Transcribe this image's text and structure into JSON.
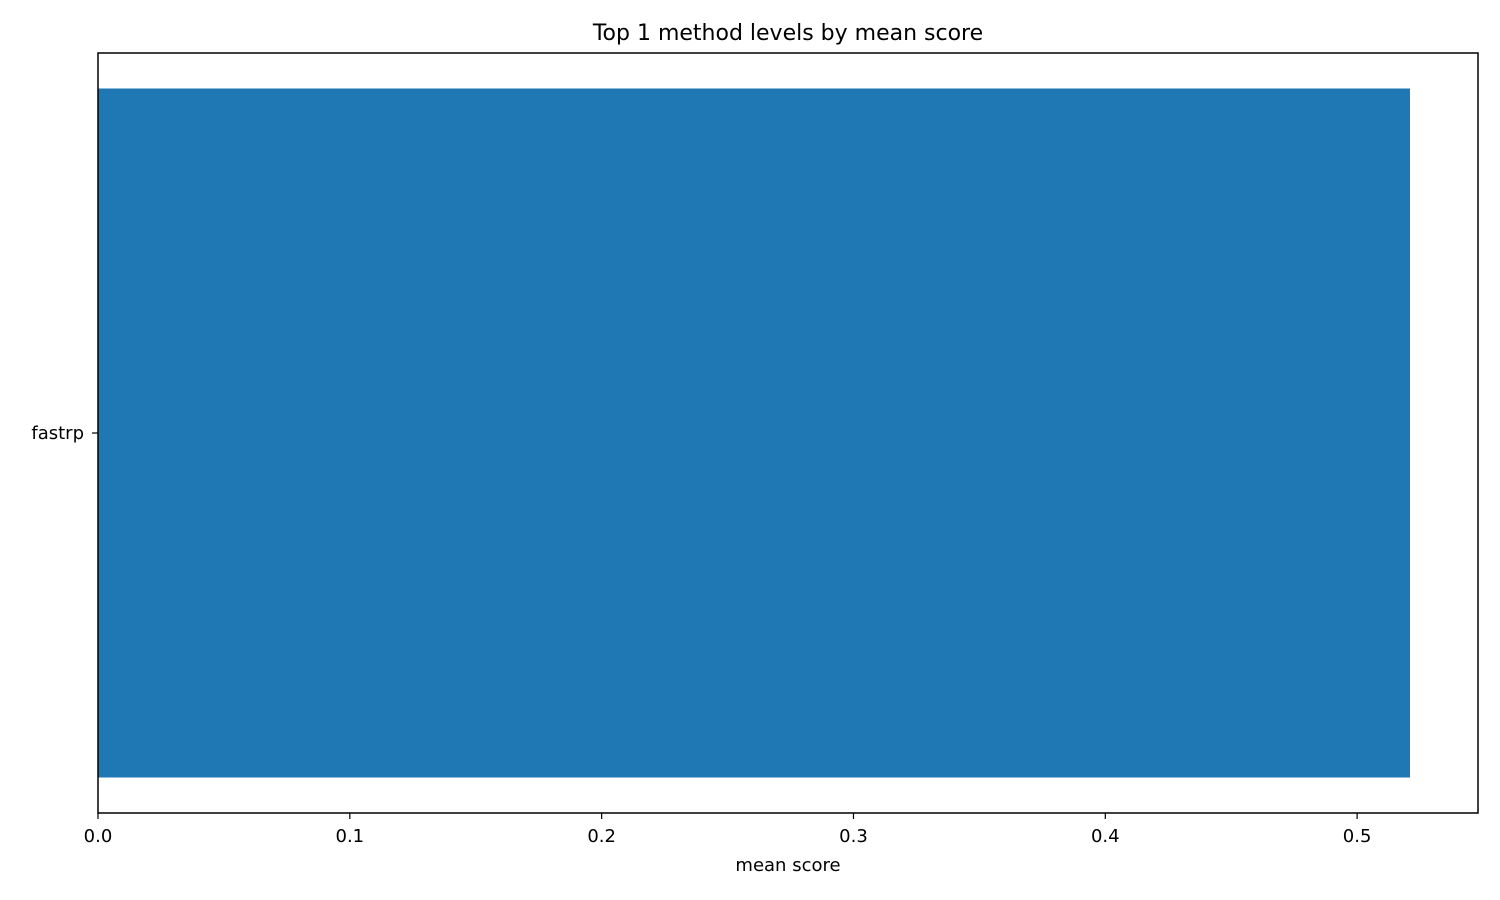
{
  "chart_data": {
    "type": "bar",
    "orientation": "horizontal",
    "title": "Top 1 method levels by mean score",
    "xlabel": "mean score",
    "ylabel": "",
    "categories": [
      "fastrp"
    ],
    "values": [
      0.521
    ],
    "xlim": [
      0,
      0.548
    ],
    "xticks": [
      0.0,
      0.1,
      0.2,
      0.3,
      0.4,
      0.5
    ],
    "xtick_labels": [
      "0.0",
      "0.1",
      "0.2",
      "0.3",
      "0.4",
      "0.5"
    ],
    "grid": false,
    "legend": "none",
    "colors": {
      "bar": "#1f77b4",
      "axis": "#000000",
      "text": "#000000",
      "background": "#ffffff"
    }
  }
}
